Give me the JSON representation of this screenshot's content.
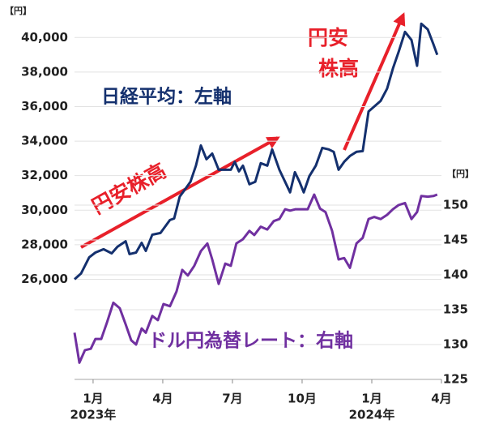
{
  "chart_data": {
    "type": "line",
    "y_unit_label": "【円】",
    "y2_unit_label": "【円】",
    "annotations": [
      "円安株高",
      "円安",
      "株高"
    ],
    "xlim": [
      -0.8,
      15
    ],
    "xticks": [
      {
        "value": 0,
        "label": "1月"
      },
      {
        "value": 3,
        "label": "4月"
      },
      {
        "value": 6,
        "label": "7月"
      },
      {
        "value": 9,
        "label": "10月"
      },
      {
        "value": 12,
        "label": "1月"
      },
      {
        "value": 15,
        "label": "4月"
      }
    ],
    "year_labels": [
      {
        "value": 0,
        "label": "2023年"
      },
      {
        "value": 12,
        "label": "2024年"
      }
    ],
    "ylim": [
      20200,
      41000
    ],
    "yticks": [
      {
        "value": 26000,
        "label": "26,000"
      },
      {
        "value": 28000,
        "label": "28,000"
      },
      {
        "value": 30000,
        "label": "30,000"
      },
      {
        "value": 32000,
        "label": "32,000"
      },
      {
        "value": 34000,
        "label": "34,000"
      },
      {
        "value": 36000,
        "label": "36,000"
      },
      {
        "value": 38000,
        "label": "38,000"
      },
      {
        "value": 40000,
        "label": "40,000"
      }
    ],
    "y2lim": [
      125,
      176.5
    ],
    "y2ticks": [
      125,
      130,
      135,
      140,
      145,
      150
    ],
    "grid": true,
    "series": [
      {
        "name": "日経平均：左軸",
        "color": "#14306e",
        "axis": "y",
        "x": [
          -0.8,
          -0.52,
          -0.17,
          0.1,
          0.45,
          0.8,
          1.05,
          1.4,
          1.57,
          1.85,
          2.09,
          2.27,
          2.55,
          2.9,
          3.31,
          3.49,
          3.73,
          3.94,
          4.19,
          4.43,
          4.64,
          4.88,
          5.13,
          5.41,
          5.69,
          5.93,
          6.1,
          6.28,
          6.45,
          6.73,
          6.98,
          7.22,
          7.5,
          7.71,
          8.02,
          8.27,
          8.48,
          8.69,
          8.89,
          9.07,
          9.31,
          9.59,
          9.87,
          10.15,
          10.36,
          10.57,
          10.81,
          11.06,
          11.34,
          11.61,
          11.86,
          12.1,
          12.38,
          12.66,
          12.91,
          13.15,
          13.43,
          13.71,
          13.95,
          14.13,
          14.41,
          14.65,
          14.82
        ],
        "values": [
          26000,
          26330,
          27270,
          27550,
          27740,
          27500,
          27880,
          28200,
          27460,
          27550,
          28110,
          27640,
          28580,
          28680,
          29430,
          29520,
          30790,
          31170,
          31640,
          32580,
          33750,
          32950,
          33280,
          32340,
          32340,
          32340,
          32800,
          32250,
          32580,
          31500,
          31640,
          32720,
          32580,
          33520,
          32340,
          31640,
          31030,
          32200,
          31640,
          31030,
          31970,
          32580,
          33610,
          33520,
          33380,
          32340,
          32800,
          33140,
          33380,
          33420,
          35720,
          36000,
          36330,
          37040,
          38210,
          39150,
          40330,
          39860,
          38360,
          40800,
          40470,
          39620,
          39000
        ]
      },
      {
        "name": "ドル円為替レート：右軸",
        "color": "#7030a0",
        "axis": "y2",
        "x": [
          -0.8,
          -0.59,
          -0.35,
          -0.1,
          0.1,
          0.35,
          0.59,
          0.87,
          1.15,
          1.4,
          1.64,
          1.85,
          2.09,
          2.27,
          2.55,
          2.79,
          3.03,
          3.31,
          3.59,
          3.84,
          4.08,
          4.36,
          4.64,
          4.92,
          5.13,
          5.41,
          5.69,
          5.93,
          6.17,
          6.45,
          6.73,
          6.94,
          7.22,
          7.5,
          7.78,
          8.02,
          8.27,
          8.48,
          8.72,
          8.96,
          9.24,
          9.52,
          9.77,
          10.01,
          10.29,
          10.57,
          10.81,
          11.06,
          11.34,
          11.61,
          11.86,
          12.1,
          12.38,
          12.66,
          12.91,
          13.15,
          13.43,
          13.71,
          13.95,
          14.13,
          14.41,
          14.65,
          14.82
        ],
        "values": [
          131.7,
          127.4,
          129.2,
          129.4,
          130.8,
          130.8,
          133.1,
          136.0,
          135.2,
          132.9,
          130.6,
          130.0,
          132.3,
          131.7,
          134.1,
          133.5,
          135.8,
          135.5,
          137.6,
          140.7,
          139.9,
          141.3,
          143.4,
          144.5,
          142.2,
          138.7,
          141.6,
          141.3,
          144.5,
          145.1,
          146.3,
          145.7,
          146.9,
          146.5,
          147.7,
          148.0,
          149.4,
          149.2,
          149.4,
          149.4,
          149.4,
          151.5,
          149.5,
          149.0,
          146.3,
          142.2,
          142.4,
          141.0,
          144.5,
          145.3,
          148.0,
          148.3,
          148.0,
          148.6,
          149.4,
          150.0,
          150.3,
          148.0,
          149.0,
          151.3,
          151.2,
          151.3,
          151.5
        ]
      }
    ]
  }
}
